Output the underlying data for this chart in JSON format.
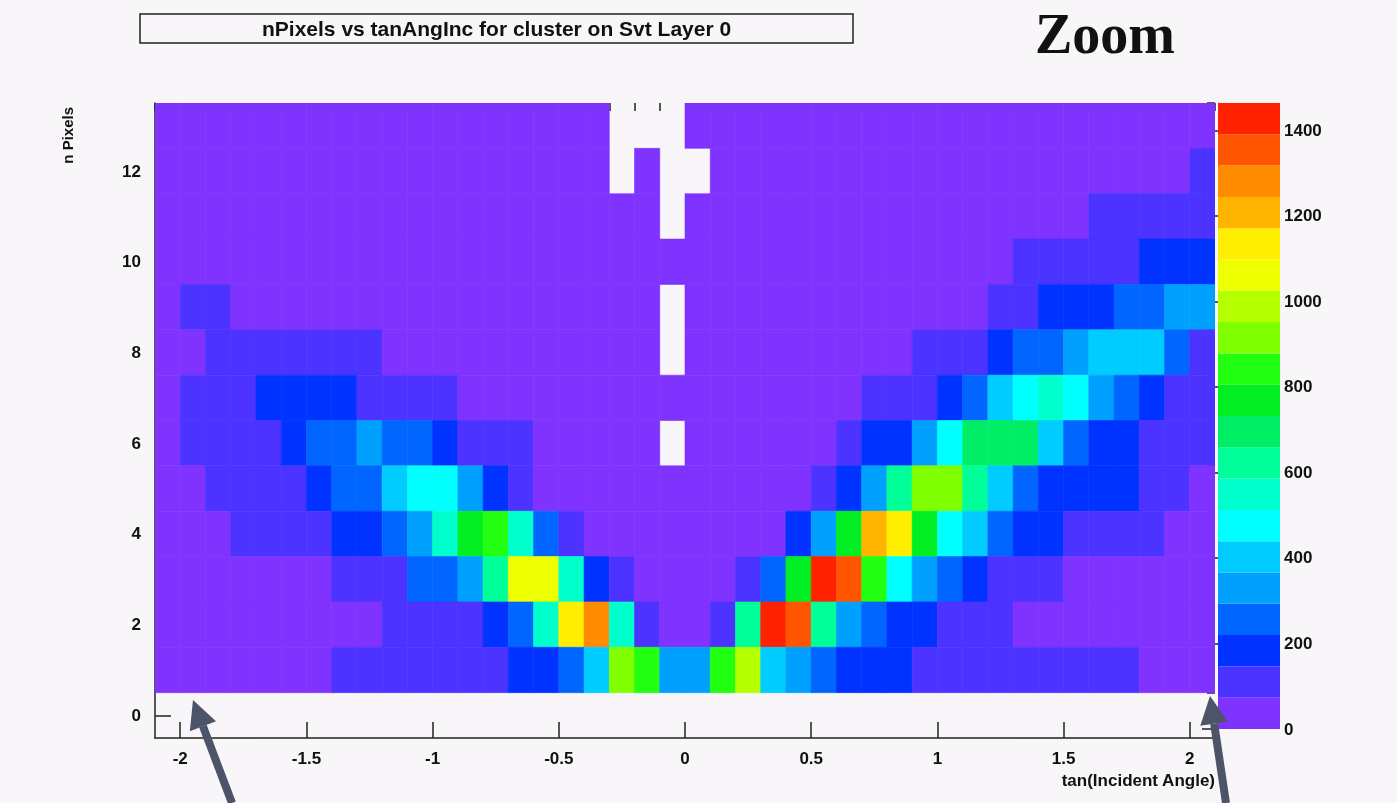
{
  "chart_data": {
    "type": "heatmap",
    "title": "nPixels vs tanAngInc for cluster on Svt Layer 0",
    "annotations": [
      "Zoom"
    ],
    "xlabel": "tan(Incident Angle)",
    "ylabel": "n Pixels",
    "x": [
      -2.05,
      -1.95,
      -1.85,
      -1.75,
      -1.65,
      -1.55,
      -1.45,
      -1.35,
      -1.25,
      -1.15,
      -1.05,
      -0.95,
      -0.85,
      -0.75,
      -0.65,
      -0.55,
      -0.45,
      -0.35,
      -0.25,
      -0.15,
      -0.05,
      0.05,
      0.15,
      0.25,
      0.35,
      0.45,
      0.55,
      0.65,
      0.75,
      0.85,
      0.95,
      1.05,
      1.15,
      1.25,
      1.35,
      1.45,
      1.55,
      1.65,
      1.75,
      1.85,
      1.95,
      2.05
    ],
    "y": [
      13,
      12,
      11,
      10,
      9,
      8,
      7,
      6,
      5,
      4,
      3,
      2,
      1
    ],
    "cells": [
      [
        40,
        40,
        40,
        40,
        40,
        40,
        40,
        40,
        40,
        40,
        40,
        40,
        40,
        40,
        40,
        40,
        40,
        40,
        null,
        null,
        null,
        40,
        40,
        40,
        40,
        40,
        40,
        40,
        40,
        40,
        40,
        40,
        40,
        40,
        40,
        40,
        40,
        40,
        40,
        40,
        40,
        40
      ],
      [
        40,
        40,
        40,
        40,
        40,
        40,
        40,
        40,
        40,
        40,
        40,
        40,
        40,
        40,
        40,
        40,
        40,
        40,
        null,
        40,
        null,
        null,
        40,
        40,
        40,
        40,
        40,
        40,
        40,
        40,
        40,
        40,
        40,
        40,
        40,
        40,
        40,
        40,
        40,
        40,
        40,
        110
      ],
      [
        40,
        40,
        40,
        40,
        40,
        40,
        40,
        40,
        40,
        40,
        40,
        40,
        40,
        40,
        40,
        40,
        40,
        40,
        40,
        40,
        null,
        40,
        40,
        40,
        40,
        40,
        40,
        40,
        40,
        40,
        40,
        40,
        40,
        40,
        40,
        40,
        40,
        110,
        110,
        110,
        110,
        110
      ],
      [
        40,
        40,
        40,
        40,
        40,
        40,
        40,
        40,
        40,
        40,
        40,
        40,
        40,
        40,
        40,
        40,
        40,
        40,
        40,
        40,
        40,
        40,
        40,
        40,
        40,
        40,
        40,
        40,
        40,
        40,
        40,
        40,
        40,
        40,
        110,
        110,
        110,
        110,
        110,
        180,
        180,
        180
      ],
      [
        40,
        110,
        110,
        40,
        40,
        40,
        40,
        40,
        40,
        40,
        40,
        40,
        40,
        40,
        40,
        40,
        40,
        40,
        40,
        40,
        null,
        40,
        40,
        40,
        40,
        40,
        40,
        40,
        40,
        40,
        40,
        40,
        40,
        110,
        110,
        180,
        180,
        180,
        260,
        260,
        330,
        330
      ],
      [
        40,
        40,
        110,
        110,
        110,
        110,
        110,
        110,
        110,
        40,
        40,
        40,
        40,
        40,
        40,
        40,
        40,
        40,
        40,
        40,
        null,
        40,
        40,
        40,
        40,
        40,
        40,
        40,
        40,
        40,
        110,
        110,
        110,
        180,
        260,
        260,
        330,
        400,
        400,
        400,
        260,
        110
      ],
      [
        40,
        110,
        110,
        110,
        180,
        180,
        180,
        180,
        110,
        110,
        110,
        110,
        40,
        40,
        40,
        40,
        40,
        40,
        40,
        40,
        40,
        40,
        40,
        40,
        40,
        40,
        40,
        40,
        110,
        110,
        110,
        180,
        260,
        400,
        480,
        550,
        480,
        330,
        260,
        180,
        110,
        110
      ],
      [
        40,
        110,
        110,
        110,
        110,
        180,
        260,
        260,
        330,
        260,
        260,
        180,
        110,
        110,
        110,
        40,
        40,
        40,
        40,
        40,
        null,
        40,
        40,
        40,
        40,
        40,
        40,
        110,
        180,
        180,
        330,
        480,
        700,
        700,
        700,
        400,
        260,
        180,
        180,
        110,
        110,
        110
      ],
      [
        40,
        40,
        110,
        110,
        110,
        110,
        180,
        260,
        260,
        400,
        480,
        480,
        330,
        180,
        110,
        40,
        40,
        40,
        40,
        40,
        40,
        40,
        40,
        40,
        40,
        40,
        110,
        180,
        330,
        620,
        920,
        920,
        620,
        400,
        260,
        180,
        180,
        180,
        180,
        110,
        110,
        40
      ],
      [
        40,
        40,
        40,
        110,
        110,
        110,
        110,
        180,
        180,
        260,
        330,
        550,
        770,
        840,
        550,
        260,
        110,
        40,
        40,
        40,
        40,
        40,
        40,
        40,
        40,
        180,
        330,
        770,
        1210,
        1130,
        770,
        480,
        400,
        260,
        180,
        180,
        110,
        110,
        110,
        110,
        40,
        40
      ],
      [
        40,
        40,
        40,
        40,
        40,
        40,
        40,
        110,
        110,
        110,
        260,
        260,
        330,
        620,
        1060,
        1060,
        550,
        180,
        110,
        40,
        40,
        40,
        40,
        110,
        260,
        770,
        1430,
        1350,
        840,
        480,
        330,
        260,
        180,
        110,
        110,
        110,
        40,
        40,
        40,
        40,
        40,
        40
      ],
      [
        40,
        40,
        40,
        40,
        40,
        40,
        40,
        40,
        40,
        110,
        110,
        110,
        110,
        180,
        260,
        550,
        1130,
        1280,
        550,
        110,
        40,
        40,
        110,
        620,
        1430,
        1350,
        620,
        330,
        260,
        180,
        180,
        110,
        110,
        110,
        40,
        40,
        40,
        40,
        40,
        40,
        40,
        40
      ],
      [
        40,
        40,
        40,
        40,
        40,
        40,
        40,
        110,
        110,
        110,
        110,
        110,
        110,
        110,
        180,
        180,
        260,
        400,
        920,
        840,
        330,
        330,
        840,
        990,
        400,
        330,
        260,
        180,
        180,
        180,
        110,
        110,
        110,
        110,
        110,
        110,
        110,
        110,
        110,
        40,
        40,
        40
      ]
    ],
    "xlim": [
      -2.1,
      2.1
    ],
    "xticks": [
      -2,
      -1.5,
      -1,
      -0.5,
      0,
      0.5,
      1,
      1.5,
      2,
      {
        "value": -2.1,
        "label": null
      },
      {
        "value": -1.9,
        "label": null
      },
      {
        "value": -1.8,
        "label": null
      },
      {
        "value": -1.7,
        "label": null
      },
      {
        "value": -1.6,
        "label": null
      },
      {
        "value": -1.4,
        "label": null
      },
      {
        "value": -1.3,
        "label": null
      },
      {
        "value": -1.2,
        "label": null
      },
      {
        "value": -1.1,
        "label": null
      },
      {
        "value": -0.9,
        "label": null
      },
      {
        "value": -0.8,
        "label": null
      },
      {
        "value": -0.7,
        "label": null
      },
      {
        "value": -0.6,
        "label": null
      },
      {
        "value": -0.4,
        "label": null
      },
      {
        "value": -0.3,
        "label": null
      },
      {
        "value": -0.2,
        "label": null
      },
      {
        "value": -0.1,
        "label": null
      },
      {
        "value": 0.1,
        "label": null
      },
      {
        "value": 0.2,
        "label": null
      },
      {
        "value": 0.3,
        "label": null
      },
      {
        "value": 0.4,
        "label": null
      },
      {
        "value": 0.6,
        "label": null
      },
      {
        "value": 0.7,
        "label": null
      },
      {
        "value": 0.8,
        "label": null
      },
      {
        "value": 0.9,
        "label": null
      },
      {
        "value": 1.1,
        "label": null
      },
      {
        "value": 1.2,
        "label": null
      },
      {
        "value": 1.3,
        "label": null
      },
      {
        "value": 1.4,
        "label": null
      },
      {
        "value": 1.6,
        "label": null
      },
      {
        "value": 1.7,
        "label": null
      },
      {
        "value": 1.8,
        "label": null
      },
      {
        "value": 1.9,
        "label": null
      },
      {
        "value": 2.1,
        "label": null
      }
    ],
    "ylim": [
      -0.5,
      13.5
    ],
    "yticks": [
      0,
      2,
      4,
      6,
      8,
      10,
      12,
      {
        "value": 0.5,
        "label": null
      },
      {
        "value": 1,
        "label": null
      },
      {
        "value": 1.5,
        "label": null
      },
      {
        "value": 2.5,
        "label": null
      },
      {
        "value": 3,
        "label": null
      },
      {
        "value": 3.5,
        "label": null
      },
      {
        "value": 4.5,
        "label": null
      },
      {
        "value": 5,
        "label": null
      },
      {
        "value": 5.5,
        "label": null
      },
      {
        "value": 6.5,
        "label": null
      },
      {
        "value": 7,
        "label": null
      },
      {
        "value": 7.5,
        "label": null
      },
      {
        "value": 8.5,
        "label": null
      },
      {
        "value": 9,
        "label": null
      },
      {
        "value": 9.5,
        "label": null
      },
      {
        "value": 10.5,
        "label": null
      },
      {
        "value": 11,
        "label": null
      },
      {
        "value": 11.5,
        "label": null
      },
      {
        "value": 12.5,
        "label": null
      },
      {
        "value": 13,
        "label": null
      },
      {
        "value": 13.5,
        "label": null
      }
    ],
    "clim": [
      0,
      1464
    ],
    "cticks": [
      0,
      200,
      400,
      600,
      800,
      1000,
      1200,
      1400
    ]
  }
}
